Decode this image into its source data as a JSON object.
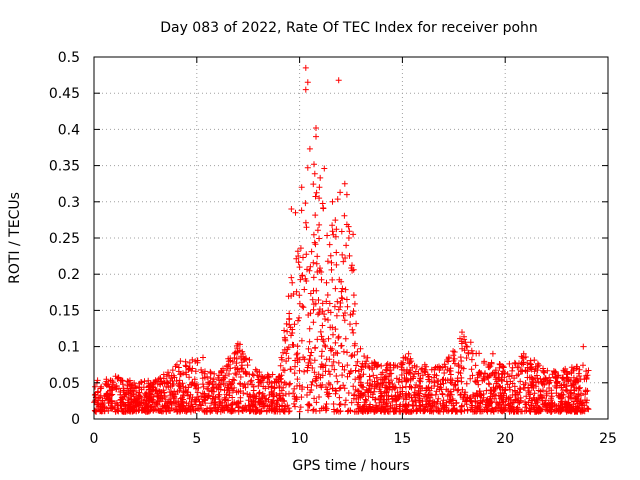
{
  "chart_data": {
    "type": "scatter",
    "title": "Day 083 of 2022, Rate Of TEC Index for receiver pohn",
    "xlabel": "GPS time / hours",
    "ylabel": "ROTI / TECUs",
    "xlim": [
      0,
      25
    ],
    "ylim": [
      0,
      0.5
    ],
    "xticks": [
      "0",
      "5",
      "10",
      "15",
      "20",
      "25"
    ],
    "yticks": [
      "0",
      "0.05",
      "0.1",
      "0.15",
      "0.2",
      "0.25",
      "0.3",
      "0.35",
      "0.4",
      "0.45",
      "0.5"
    ],
    "grid": true,
    "marker": "+",
    "color": "#ff0000",
    "series": [
      {
        "name": "ROTI",
        "notable_points": [
          {
            "x": 10.3,
            "y": 0.485
          },
          {
            "x": 10.4,
            "y": 0.465
          },
          {
            "x": 10.3,
            "y": 0.455
          },
          {
            "x": 11.9,
            "y": 0.468
          },
          {
            "x": 10.8,
            "y": 0.402
          },
          {
            "x": 10.8,
            "y": 0.39
          },
          {
            "x": 10.5,
            "y": 0.373
          },
          {
            "x": 10.7,
            "y": 0.352
          },
          {
            "x": 10.4,
            "y": 0.347
          },
          {
            "x": 11.2,
            "y": 0.346
          },
          {
            "x": 11.0,
            "y": 0.333
          },
          {
            "x": 12.2,
            "y": 0.325
          },
          {
            "x": 10.1,
            "y": 0.32
          },
          {
            "x": 12.3,
            "y": 0.31
          },
          {
            "x": 9.6,
            "y": 0.29
          },
          {
            "x": 9.8,
            "y": 0.285
          },
          {
            "x": 11.6,
            "y": 0.3
          },
          {
            "x": 12.6,
            "y": 0.255
          },
          {
            "x": 12.4,
            "y": 0.25
          },
          {
            "x": 7.0,
            "y": 0.104
          },
          {
            "x": 7.1,
            "y": 0.103
          },
          {
            "x": 17.9,
            "y": 0.12
          },
          {
            "x": 18.0,
            "y": 0.11
          },
          {
            "x": 19.4,
            "y": 0.09
          },
          {
            "x": 20.9,
            "y": 0.09
          },
          {
            "x": 15.3,
            "y": 0.09
          },
          {
            "x": 23.8,
            "y": 0.1
          },
          {
            "x": 5.3,
            "y": 0.085
          },
          {
            "x": 4.2,
            "y": 0.08
          }
        ],
        "envelope": [
          {
            "x": 0.0,
            "y_max": 0.055
          },
          {
            "x": 1.0,
            "y_max": 0.06
          },
          {
            "x": 2.0,
            "y_max": 0.052
          },
          {
            "x": 3.0,
            "y_max": 0.055
          },
          {
            "x": 4.0,
            "y_max": 0.075
          },
          {
            "x": 5.0,
            "y_max": 0.085
          },
          {
            "x": 6.0,
            "y_max": 0.06
          },
          {
            "x": 7.0,
            "y_max": 0.105
          },
          {
            "x": 8.0,
            "y_max": 0.065
          },
          {
            "x": 9.0,
            "y_max": 0.06
          },
          {
            "x": 9.5,
            "y_max": 0.2
          },
          {
            "x": 10.0,
            "y_max": 0.28
          },
          {
            "x": 10.5,
            "y_max": 0.35
          },
          {
            "x": 11.0,
            "y_max": 0.33
          },
          {
            "x": 11.5,
            "y_max": 0.28
          },
          {
            "x": 12.0,
            "y_max": 0.32
          },
          {
            "x": 12.5,
            "y_max": 0.25
          },
          {
            "x": 13.0,
            "y_max": 0.09
          },
          {
            "x": 14.0,
            "y_max": 0.075
          },
          {
            "x": 15.0,
            "y_max": 0.09
          },
          {
            "x": 16.0,
            "y_max": 0.075
          },
          {
            "x": 17.0,
            "y_max": 0.075
          },
          {
            "x": 18.0,
            "y_max": 0.12
          },
          {
            "x": 19.0,
            "y_max": 0.08
          },
          {
            "x": 20.0,
            "y_max": 0.075
          },
          {
            "x": 21.0,
            "y_max": 0.09
          },
          {
            "x": 22.0,
            "y_max": 0.07
          },
          {
            "x": 23.0,
            "y_max": 0.07
          },
          {
            "x": 24.0,
            "y_max": 0.08
          }
        ]
      }
    ]
  }
}
